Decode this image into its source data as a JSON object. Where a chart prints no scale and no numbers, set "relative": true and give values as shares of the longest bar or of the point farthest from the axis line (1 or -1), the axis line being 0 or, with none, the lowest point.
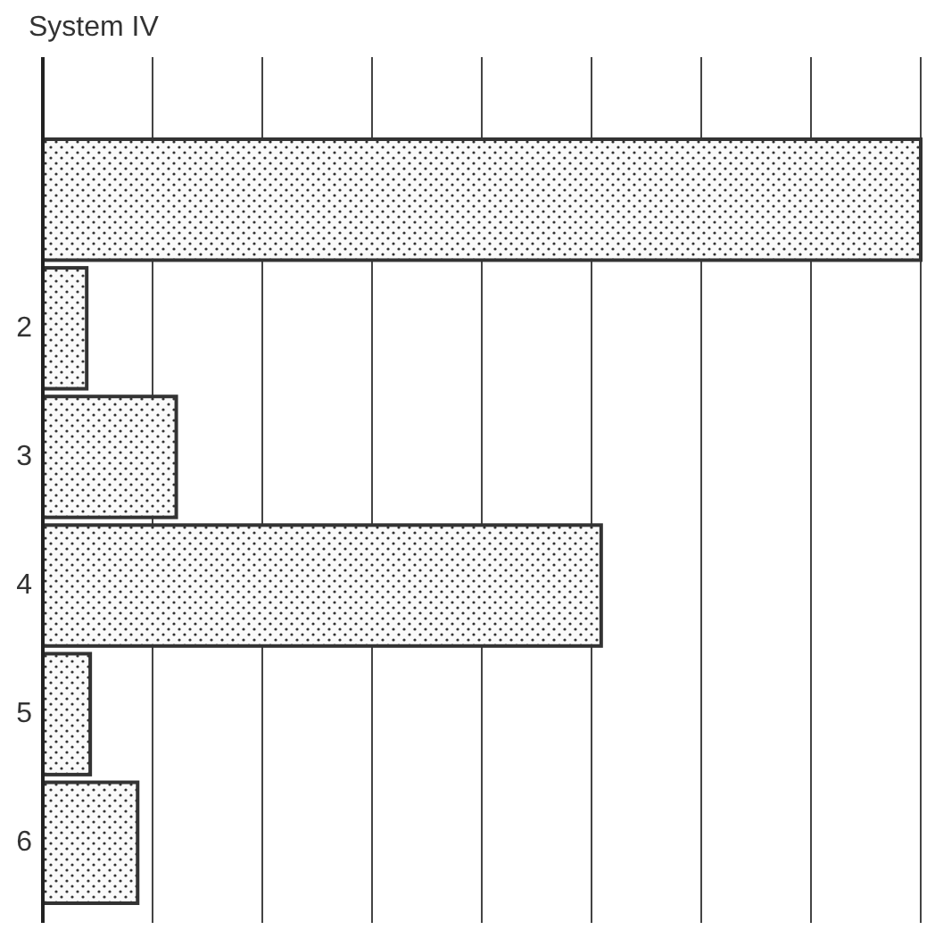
{
  "chart_data": {
    "type": "bar",
    "orientation": "horizontal",
    "relative": true,
    "title": "System IV",
    "categories": [
      null,
      "2",
      "3",
      "4",
      "5",
      "6"
    ],
    "values": [
      1,
      0.05,
      0.152,
      0.636,
      0.054,
      0.108
    ],
    "color": "#333333",
    "grid": true
  }
}
